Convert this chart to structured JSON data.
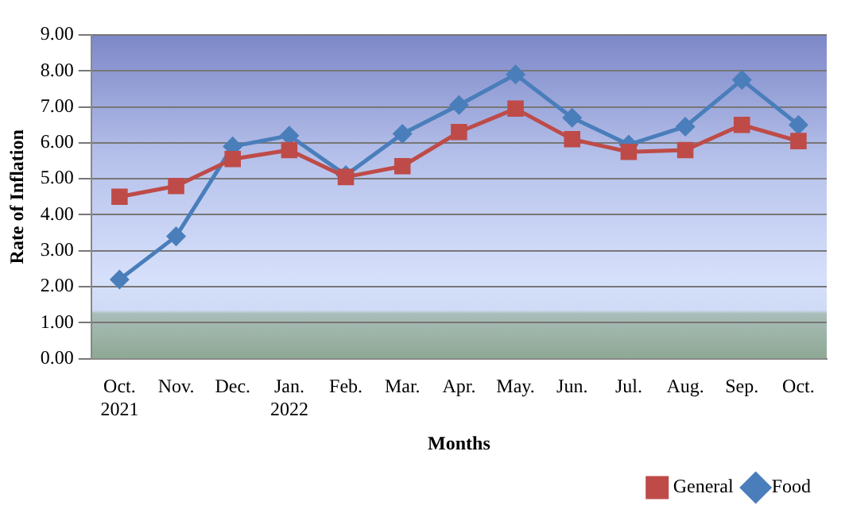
{
  "chart_data": {
    "type": "line",
    "xlabel": "Months",
    "ylabel": "Rate of Inflation",
    "categories": [
      "Oct. 2021",
      "Nov.",
      "Dec.",
      "Jan. 2022",
      "Feb.",
      "Mar.",
      "Apr.",
      "May.",
      "Jun.",
      "Jul.",
      "Aug.",
      "Sep.",
      "Oct."
    ],
    "series": [
      {
        "name": "Food",
        "color": "#4a7ebb",
        "marker": "diamond",
        "values": [
          2.2,
          3.4,
          5.9,
          6.2,
          5.1,
          6.25,
          7.05,
          7.9,
          6.7,
          5.95,
          6.45,
          7.75,
          6.5
        ]
      },
      {
        "name": "General",
        "color": "#be4b48",
        "marker": "square",
        "values": [
          4.5,
          4.8,
          5.55,
          5.8,
          5.05,
          5.35,
          6.3,
          6.95,
          6.1,
          5.75,
          5.8,
          6.5,
          6.05
        ]
      }
    ],
    "ylim": [
      0,
      9
    ],
    "yticks": [
      {
        "value": 0,
        "label": "0.00"
      },
      {
        "value": 1,
        "label": "1.00"
      },
      {
        "value": 2,
        "label": "2.00"
      },
      {
        "value": 3,
        "label": "3.00"
      },
      {
        "value": 4,
        "label": "4.00"
      },
      {
        "value": 5,
        "label": "5.00"
      },
      {
        "value": 6,
        "label": "6.00"
      },
      {
        "value": 7,
        "label": "7.00"
      },
      {
        "value": 8,
        "label": "8.00"
      },
      {
        "value": 9,
        "label": "9.00"
      }
    ],
    "grid": "y",
    "legend": "bottom right",
    "line_style": "solid"
  }
}
